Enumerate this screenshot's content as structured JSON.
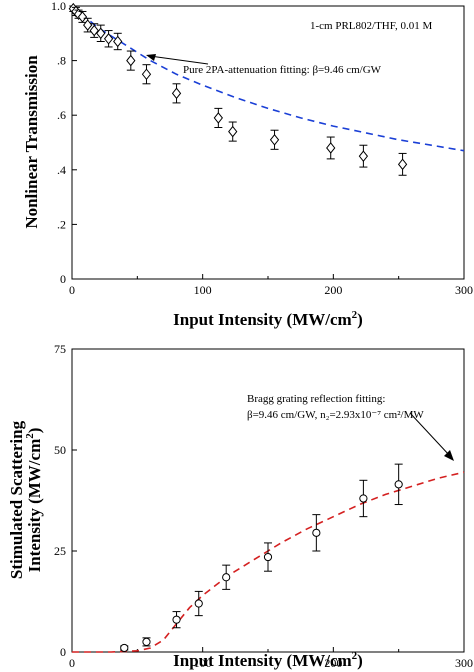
{
  "chart_data": [
    {
      "type": "scatter",
      "xlabel": "Input Intensity (MW/cm",
      "xlabel_sup": "2",
      "xlabel_tail": ")",
      "ylabel": "Nonlinear Transmission",
      "xlim": [
        0,
        300
      ],
      "ylim": [
        0,
        1.0
      ],
      "xticks": [
        "0",
        "100",
        "200",
        "300"
      ],
      "yticks": [
        "0",
        ".2",
        ".4",
        ".6",
        ".8",
        "1.0"
      ],
      "sample_label": "1-cm PRL802/THF, 0.01 M",
      "fit_label": "Pure 2PA-attenuation fitting: β=9.46 cm/GW",
      "fit_color": "#1a3fd6",
      "marker": "diamond",
      "points": [
        {
          "x": 1,
          "y": 0.99,
          "err": 0.01
        },
        {
          "x": 3,
          "y": 0.98,
          "err": 0.015
        },
        {
          "x": 5,
          "y": 0.97,
          "err": 0.015
        },
        {
          "x": 8,
          "y": 0.96,
          "err": 0.02
        },
        {
          "x": 12,
          "y": 0.93,
          "err": 0.025
        },
        {
          "x": 17,
          "y": 0.91,
          "err": 0.025
        },
        {
          "x": 22,
          "y": 0.9,
          "err": 0.03
        },
        {
          "x": 28,
          "y": 0.88,
          "err": 0.03
        },
        {
          "x": 35,
          "y": 0.87,
          "err": 0.03
        },
        {
          "x": 45,
          "y": 0.8,
          "err": 0.035
        },
        {
          "x": 57,
          "y": 0.75,
          "err": 0.035
        },
        {
          "x": 80,
          "y": 0.68,
          "err": 0.035
        },
        {
          "x": 112,
          "y": 0.59,
          "err": 0.035
        },
        {
          "x": 123,
          "y": 0.54,
          "err": 0.035
        },
        {
          "x": 155,
          "y": 0.51,
          "err": 0.035
        },
        {
          "x": 198,
          "y": 0.48,
          "err": 0.04
        },
        {
          "x": 223,
          "y": 0.45,
          "err": 0.04
        },
        {
          "x": 253,
          "y": 0.42,
          "err": 0.04
        }
      ],
      "fit": {
        "x": [
          0,
          10,
          20,
          30,
          40,
          50,
          60,
          80,
          100,
          125,
          150,
          175,
          200,
          225,
          250,
          275,
          300
        ],
        "y": [
          1.0,
          0.96,
          0.92,
          0.89,
          0.86,
          0.83,
          0.8,
          0.75,
          0.71,
          0.665,
          0.625,
          0.59,
          0.56,
          0.535,
          0.51,
          0.49,
          0.47
        ]
      }
    },
    {
      "type": "scatter",
      "xlabel": "Input Intensity (MW/cm",
      "xlabel_sup": "2",
      "xlabel_tail": ")",
      "ylabel_line1": "Stimulated Scattering",
      "ylabel_line2": "Intensity (MW/cm",
      "ylabel_sup": "2",
      "ylabel_tail": ")",
      "xlim": [
        0,
        300
      ],
      "ylim": [
        0,
        75
      ],
      "xticks": [
        "0",
        "100",
        "200",
        "300"
      ],
      "yticks": [
        "0",
        "25",
        "50",
        "75"
      ],
      "fit_label_line1": "Bragg grating reflection fitting:",
      "fit_label_line2": "β=9.46 cm/GW, n₂=2.93x10⁻⁷ cm²/MW",
      "fit_color": "#d42020",
      "marker": "circle",
      "points": [
        {
          "x": 40,
          "y": 1.0,
          "err": 0.5
        },
        {
          "x": 57,
          "y": 2.5,
          "err": 1.0
        },
        {
          "x": 80,
          "y": 8.0,
          "err": 2.0
        },
        {
          "x": 97,
          "y": 12.0,
          "err": 3.0
        },
        {
          "x": 118,
          "y": 18.5,
          "err": 3.0
        },
        {
          "x": 150,
          "y": 23.5,
          "err": 3.5
        },
        {
          "x": 187,
          "y": 29.5,
          "err": 4.5
        },
        {
          "x": 223,
          "y": 38.0,
          "err": 4.5
        },
        {
          "x": 250,
          "y": 41.5,
          "err": 5.0
        }
      ],
      "fit": {
        "x": [
          0,
          30,
          50,
          60,
          70,
          80,
          90,
          100,
          110,
          120,
          140,
          160,
          180,
          200,
          220,
          240,
          260,
          280,
          300
        ],
        "y": [
          0,
          0,
          0.3,
          1.0,
          3.0,
          7.0,
          11.0,
          14.0,
          16.5,
          19.0,
          23.0,
          27.0,
          30.5,
          33.5,
          36.5,
          39.0,
          41.0,
          43.0,
          44.5
        ]
      }
    }
  ]
}
